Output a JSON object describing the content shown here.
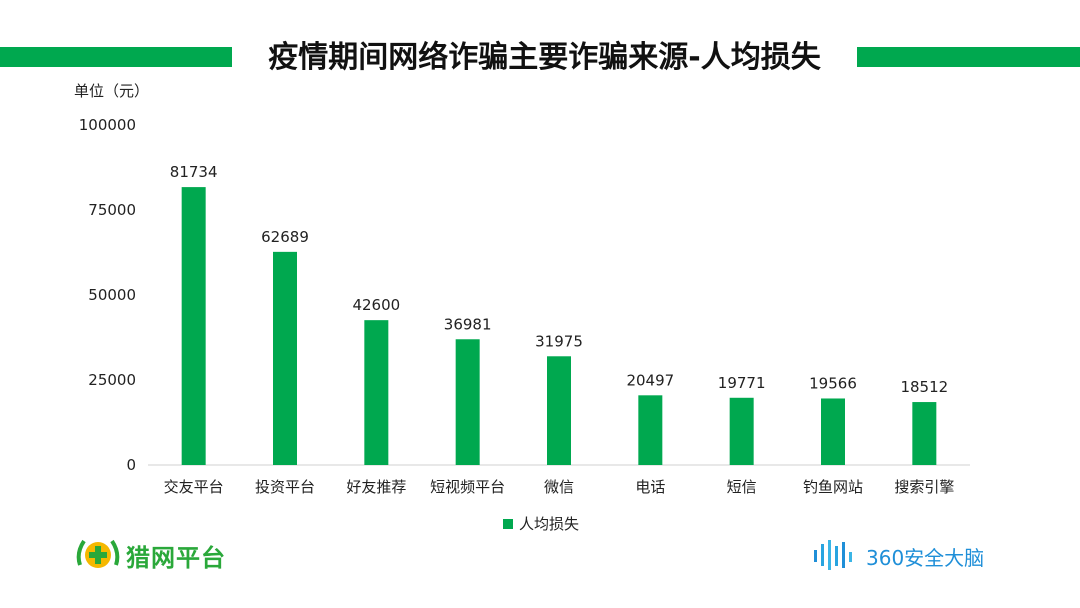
{
  "header": {
    "title": "疫情期间网络诈骗主要诈骗来源-人均损失",
    "accent_color": "#00a84f"
  },
  "unit_label": "单位（元）",
  "chart_data": {
    "type": "bar",
    "title": "疫情期间网络诈骗主要诈骗来源-人均损失",
    "xlabel": "",
    "ylabel": "单位（元）",
    "ylim": [
      0,
      100000
    ],
    "yticks": [
      0,
      25000,
      50000,
      75000,
      100000
    ],
    "ytick_labels": [
      "0",
      "25000",
      "50000",
      "75000",
      "100000"
    ],
    "categories": [
      "交友平台",
      "投资平台",
      "好友推荐",
      "短视频平台",
      "微信",
      "电话",
      "短信",
      "钓鱼网站",
      "搜索引擎"
    ],
    "series": [
      {
        "name": "人均损失",
        "color": "#00a84f",
        "values": [
          81734,
          62689,
          42600,
          36981,
          31975,
          20497,
          19771,
          19566,
          18512
        ]
      }
    ],
    "legend": "bottom-center",
    "grid": false
  },
  "logos": {
    "left_text": "猎网平台",
    "right_text": "360安全大脑"
  }
}
